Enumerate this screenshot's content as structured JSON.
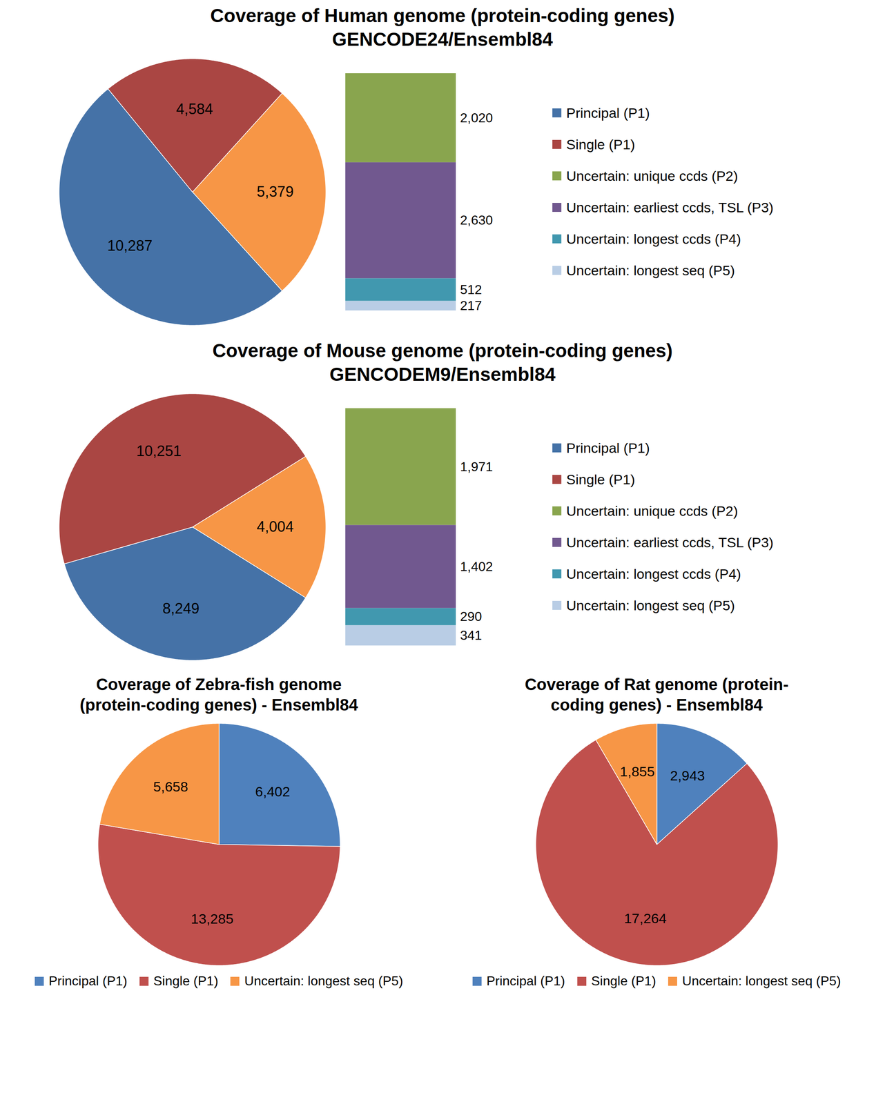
{
  "chart_data": [
    {
      "type": "bar-of-pie",
      "title": "Coverage of Human genome (protein-coding genes)",
      "subtitle": "GENCODE24/Ensembl84",
      "categories": [
        "Principal (P1)",
        "Single (P1)",
        null
      ],
      "values": [
        10287,
        4584,
        5379
      ],
      "value_labels": [
        "10,287",
        "4,584",
        "5,379"
      ],
      "colors": [
        "#4572a7",
        "#aa4643",
        "#f79646"
      ],
      "bar": {
        "categories": [
          "Uncertain: unique ccds (P2)",
          "Uncertain: earliest ccds, TSL (P3)",
          "Uncertain: longest ccds (P4)",
          "Uncertain: longest seq (P5)"
        ],
        "values": [
          2020,
          2630,
          512,
          217
        ],
        "value_labels": [
          "2,020",
          "2,630",
          "512",
          "217"
        ],
        "colors": [
          "#89a54e",
          "#71588f",
          "#4198af",
          "#b9cde5"
        ]
      },
      "data_labels": true,
      "legend": "right"
    },
    {
      "type": "bar-of-pie",
      "title": "Coverage of Mouse genome (protein-coding genes)",
      "subtitle": "GENCODEM9/Ensembl84",
      "categories": [
        "Principal (P1)",
        "Single (P1)",
        null
      ],
      "values": [
        8249,
        10251,
        4004
      ],
      "value_labels": [
        "8,249",
        "10,251",
        "4,004"
      ],
      "colors": [
        "#4572a7",
        "#aa4643",
        "#f79646"
      ],
      "bar": {
        "categories": [
          "Uncertain: unique ccds (P2)",
          "Uncertain: earliest ccds, TSL (P3)",
          "Uncertain: longest ccds (P4)",
          "Uncertain: longest seq (P5)"
        ],
        "values": [
          1971,
          1402,
          290,
          341
        ],
        "value_labels": [
          "1,971",
          "1,402",
          "290",
          "341"
        ],
        "colors": [
          "#89a54e",
          "#71588f",
          "#4198af",
          "#b9cde5"
        ]
      },
      "data_labels": true,
      "legend": "right"
    },
    {
      "type": "pie",
      "title": "Coverage of Zebra-fish genome (protein-coding genes) - Ensembl84",
      "categories": [
        "Principal (P1)",
        "Single (P1)",
        "Uncertain: longest seq (P5)"
      ],
      "values": [
        6402,
        13285,
        5658
      ],
      "value_labels": [
        "6,402",
        "13,285",
        "5,658"
      ],
      "colors": [
        "#4f81bd",
        "#c0504d",
        "#f79646"
      ],
      "data_labels": true,
      "legend": "bottom"
    },
    {
      "type": "pie",
      "title": "Coverage of Rat genome (protein-coding genes) - Ensembl84",
      "categories": [
        "Principal (P1)",
        "Single (P1)",
        "Uncertain: longest seq (P5)"
      ],
      "values": [
        2943,
        17264,
        1855
      ],
      "value_labels": [
        "2,943",
        "17,264",
        "1,855"
      ],
      "colors": [
        "#4f81bd",
        "#c0504d",
        "#f79646"
      ],
      "data_labels": true,
      "legend": "bottom"
    }
  ]
}
